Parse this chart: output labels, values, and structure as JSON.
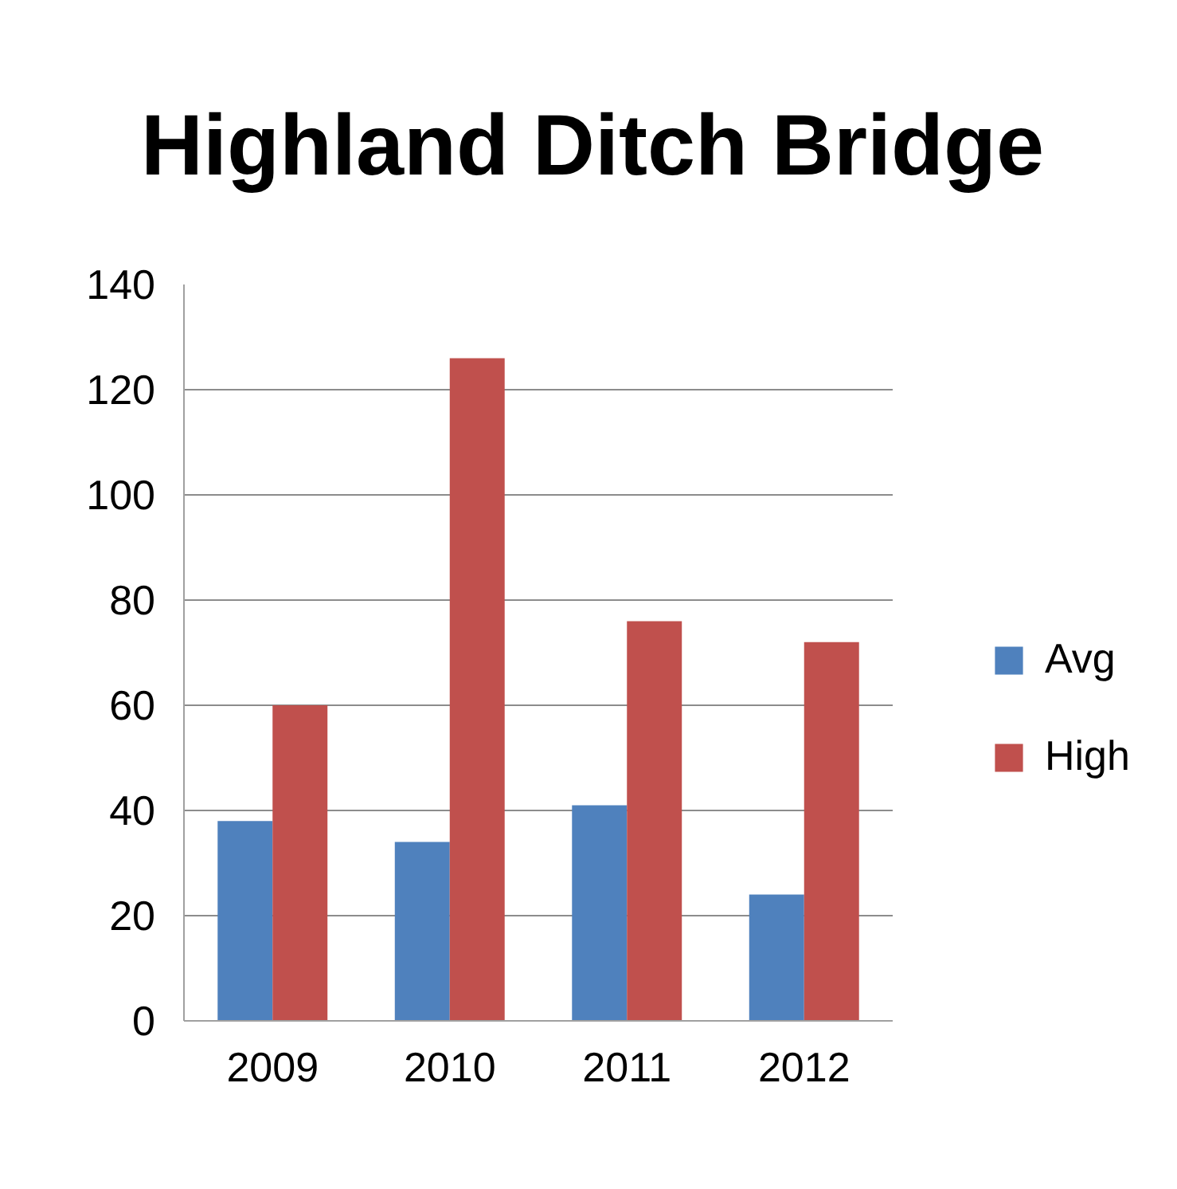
{
  "chart_data": {
    "type": "bar",
    "title": "Highland Ditch Bridge",
    "categories": [
      "2009",
      "2010",
      "2011",
      "2012"
    ],
    "series": [
      {
        "name": "Avg",
        "color": "#4f81bd",
        "values": [
          38,
          34,
          41,
          24
        ]
      },
      {
        "name": "High",
        "color": "#c0504d",
        "values": [
          60,
          126,
          76,
          72
        ]
      }
    ],
    "ylim": [
      0,
      140
    ],
    "yticks": [
      0,
      20,
      40,
      60,
      80,
      100,
      120,
      140
    ],
    "grid": "y",
    "legend": "right"
  }
}
